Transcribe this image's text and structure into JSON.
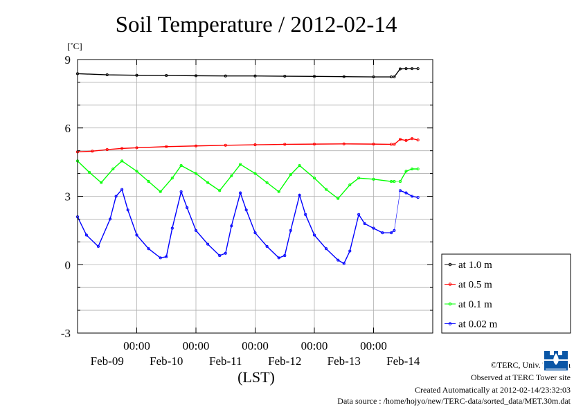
{
  "chart_data": {
    "type": "line",
    "title": "Soil Temperature / 2012-02-14",
    "ylabel": "[˚C]",
    "xlabel": "(LST)",
    "ylim": [
      -3,
      9
    ],
    "yticks": [
      9,
      6,
      3,
      0,
      -3
    ],
    "xlim": [
      0,
      6
    ],
    "xticks_time": [
      "00:00",
      "00:00",
      "00:00",
      "00:00",
      "00:00"
    ],
    "xticks_time_pos": [
      1,
      2,
      3,
      4,
      5
    ],
    "xticks_date": [
      "Feb-09",
      "Feb-10",
      "Feb-11",
      "Feb-12",
      "Feb-13",
      "Feb-14"
    ],
    "xticks_date_pos": [
      0.5,
      1.5,
      2.5,
      3.5,
      4.5,
      5.5
    ],
    "grid": true,
    "legend_position": "right",
    "series": [
      {
        "name": "at 1.0 m",
        "color": "#000000",
        "x": [
          0,
          0.5,
          1.0,
          1.5,
          2.0,
          2.5,
          3.0,
          3.5,
          4.0,
          4.5,
          5.0,
          5.3,
          5.35,
          5.45,
          5.55,
          5.65,
          5.75
        ],
        "y": [
          8.38,
          8.33,
          8.31,
          8.3,
          8.29,
          8.28,
          8.28,
          8.27,
          8.26,
          8.25,
          8.24,
          8.24,
          8.24,
          8.59,
          8.6,
          8.6,
          8.6
        ],
        "gap_after_index": 11
      },
      {
        "name": "at 0.5 m",
        "color": "#ff0000",
        "x": [
          0,
          0.25,
          0.5,
          0.75,
          1.0,
          1.5,
          2.0,
          2.5,
          3.0,
          3.5,
          4.0,
          4.5,
          5.0,
          5.3,
          5.35,
          5.45,
          5.55,
          5.65,
          5.75
        ],
        "y": [
          4.95,
          4.98,
          5.05,
          5.1,
          5.13,
          5.18,
          5.21,
          5.24,
          5.26,
          5.28,
          5.29,
          5.3,
          5.29,
          5.28,
          5.28,
          5.5,
          5.45,
          5.53,
          5.47
        ],
        "gap_after_index": 13
      },
      {
        "name": "at 0.1 m",
        "color": "#00ff00",
        "x": [
          0,
          0.2,
          0.4,
          0.6,
          0.75,
          1.0,
          1.2,
          1.4,
          1.6,
          1.75,
          2.0,
          2.2,
          2.4,
          2.6,
          2.75,
          3.0,
          3.2,
          3.4,
          3.6,
          3.75,
          4.0,
          4.2,
          4.4,
          4.6,
          4.75,
          5.0,
          5.3,
          5.35,
          5.45,
          5.55,
          5.65,
          5.75
        ],
        "y": [
          4.55,
          4.05,
          3.6,
          4.2,
          4.55,
          4.1,
          3.65,
          3.2,
          3.8,
          4.35,
          4.0,
          3.6,
          3.25,
          3.9,
          4.4,
          4.0,
          3.6,
          3.2,
          3.95,
          4.35,
          3.8,
          3.3,
          2.9,
          3.5,
          3.8,
          3.75,
          3.65,
          3.65,
          3.65,
          4.1,
          4.2,
          4.2
        ],
        "gap_after_index": 27
      },
      {
        "name": "at 0.02 m",
        "color": "#0000ff",
        "x": [
          0,
          0.15,
          0.35,
          0.55,
          0.65,
          0.75,
          0.85,
          1.0,
          1.2,
          1.4,
          1.5,
          1.6,
          1.75,
          1.85,
          2.0,
          2.2,
          2.4,
          2.5,
          2.6,
          2.75,
          2.85,
          3.0,
          3.2,
          3.4,
          3.5,
          3.6,
          3.75,
          3.85,
          4.0,
          4.2,
          4.4,
          4.5,
          4.6,
          4.75,
          4.85,
          5.0,
          5.15,
          5.3,
          5.35,
          5.45,
          5.55,
          5.65,
          5.75
        ],
        "y": [
          2.1,
          1.3,
          0.8,
          2.0,
          3.0,
          3.3,
          2.4,
          1.3,
          0.7,
          0.3,
          0.35,
          1.6,
          3.2,
          2.5,
          1.5,
          0.9,
          0.4,
          0.5,
          1.7,
          3.15,
          2.4,
          1.4,
          0.8,
          0.3,
          0.4,
          1.5,
          3.05,
          2.2,
          1.3,
          0.7,
          0.2,
          0.05,
          0.6,
          2.2,
          1.8,
          1.6,
          1.4,
          1.4,
          1.5,
          3.25,
          3.15,
          3.0,
          2.95
        ],
        "gap_after_index": 38
      }
    ]
  },
  "footer": {
    "copyright": "©TERC, Univ. Tsukuba",
    "observed": "Observed at TERC Tower site",
    "created": "Created Automatically at 2012-02-14/23:32:03",
    "source": "Data source : /home/hojyo/new/TERC-data/sorted_data/MET.30m.dat"
  }
}
